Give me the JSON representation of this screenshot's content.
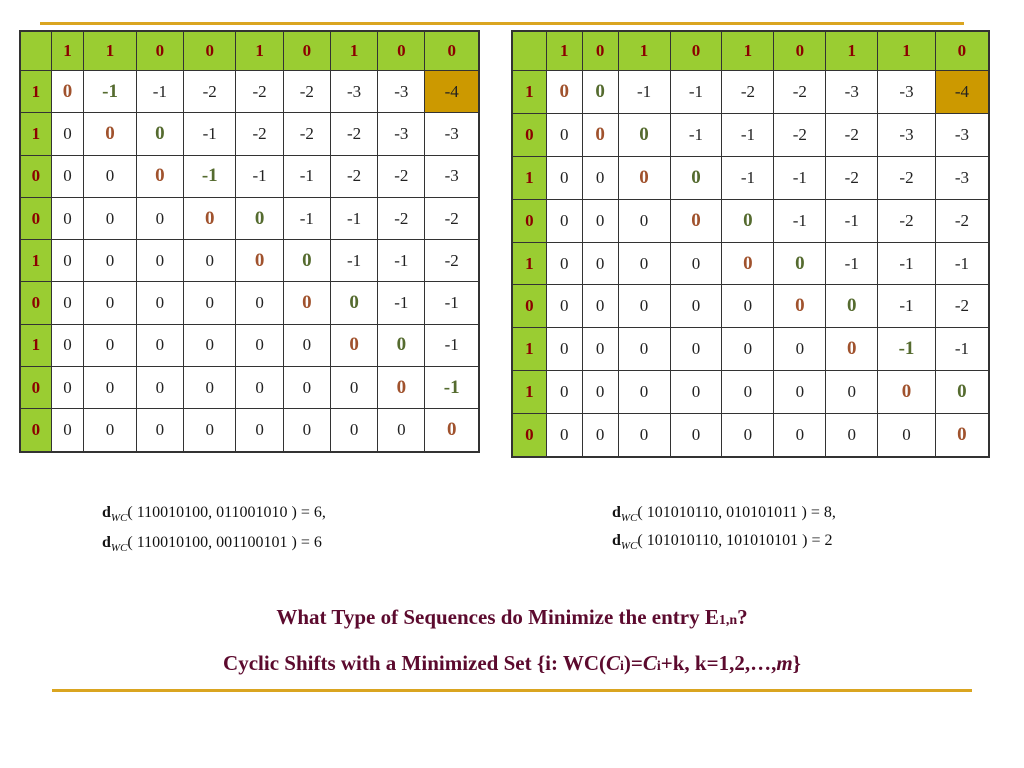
{
  "grid1": {
    "header": [
      "1",
      "1",
      "0",
      "0",
      "1",
      "0",
      "1",
      "0",
      "0"
    ],
    "row_labels": [
      "1",
      "1",
      "0",
      "0",
      "1",
      "0",
      "1",
      "0",
      "0"
    ],
    "rows": [
      [
        "0",
        "-1",
        "-1",
        "-2",
        "-2",
        "-2",
        "-3",
        "-3",
        "-4"
      ],
      [
        "0",
        "0",
        "0",
        "-1",
        "-2",
        "-2",
        "-2",
        "-3",
        "-3"
      ],
      [
        "0",
        "0",
        "0",
        "-1",
        "-1",
        "-1",
        "-2",
        "-2",
        "-3"
      ],
      [
        "0",
        "0",
        "0",
        "0",
        "0",
        "-1",
        "-1",
        "-2",
        "-2"
      ],
      [
        "0",
        "0",
        "0",
        "0",
        "0",
        "0",
        "-1",
        "-1",
        "-2"
      ],
      [
        "0",
        "0",
        "0",
        "0",
        "0",
        "0",
        "0",
        "-1",
        "-1"
      ],
      [
        "0",
        "0",
        "0",
        "0",
        "0",
        "0",
        "0",
        "0",
        "-1"
      ],
      [
        "0",
        "0",
        "0",
        "0",
        "0",
        "0",
        "0",
        "0",
        "-1"
      ],
      [
        "0",
        "0",
        "0",
        "0",
        "0",
        "0",
        "0",
        "0",
        "0"
      ]
    ],
    "highlight_cell": [
      0,
      8
    ],
    "diagonal_color_1": "#A0522D",
    "diagonal_color_2": "#556B2F"
  },
  "grid2": {
    "header": [
      "1",
      "0",
      "1",
      "0",
      "1",
      "0",
      "1",
      "1",
      "0"
    ],
    "row_labels": [
      "1",
      "0",
      "1",
      "0",
      "1",
      "0",
      "1",
      "1",
      "0"
    ],
    "rows": [
      [
        "0",
        "0",
        "-1",
        "-1",
        "-2",
        "-2",
        "-3",
        "-3",
        "-4"
      ],
      [
        "0",
        "0",
        "0",
        "-1",
        "-1",
        "-2",
        "-2",
        "-3",
        "-3"
      ],
      [
        "0",
        "0",
        "0",
        "0",
        "-1",
        "-1",
        "-2",
        "-2",
        "-3"
      ],
      [
        "0",
        "0",
        "0",
        "0",
        "0",
        "-1",
        "-1",
        "-2",
        "-2"
      ],
      [
        "0",
        "0",
        "0",
        "0",
        "0",
        "0",
        "-1",
        "-1",
        "-1"
      ],
      [
        "0",
        "0",
        "0",
        "0",
        "0",
        "0",
        "0",
        "-1",
        "-2"
      ],
      [
        "0",
        "0",
        "0",
        "0",
        "0",
        "0",
        "0",
        "-1",
        "-1"
      ],
      [
        "0",
        "0",
        "0",
        "0",
        "0",
        "0",
        "0",
        "0",
        "0"
      ],
      [
        "0",
        "0",
        "0",
        "0",
        "0",
        "0",
        "0",
        "0",
        "0"
      ]
    ],
    "highlight_cell": [
      0,
      8
    ],
    "diagonal_color_1": "#A0522D",
    "diagonal_color_2": "#556B2F"
  },
  "header_color": "#9ACD32",
  "highlight_color": "#CC9900",
  "rule_color": "#DAA520",
  "formulas_left": [
    {
      "d": "d",
      "sub": "WC",
      "args": "( 110010100, 011001010 ) = 6,"
    },
    {
      "d": "d",
      "sub": "WC",
      "args": "( 110010100, 001100101 ) = 6"
    }
  ],
  "formulas_right": [
    {
      "d": "d",
      "sub": "WC",
      "args": "( 101010110, 010101011 ) = 8,"
    },
    {
      "d": "d",
      "sub": "WC",
      "args": "( 101010110, 101010101 ) = 2"
    }
  ],
  "question": {
    "text": "What Type of Sequences do Minimize the entry E",
    "sub": "1,n",
    "end": "?"
  },
  "answer": {
    "part1": "Cyclic Shifts with a Minimized Set {i: WC(",
    "c1": "C",
    "s1": "i",
    "part2": ")=",
    "c2": "C",
    "s2": "i",
    "part3": "+k, k=1,2,…,",
    "m": "m",
    "part4": "}"
  }
}
